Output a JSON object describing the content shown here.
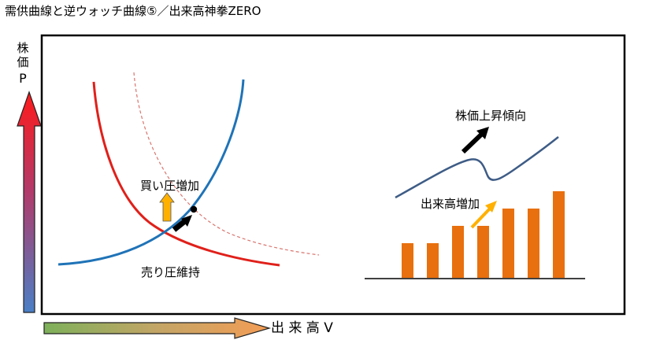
{
  "title": "需供曲線と逆ウォッチ曲線⑤／出来高神拳ZERO",
  "y_axis": {
    "label_line1": "株",
    "label_line2": "価",
    "label_line3": "P"
  },
  "x_axis": {
    "label": "出 来 高 V"
  },
  "left_panel": {
    "buying_pressure_label": "買い圧増加",
    "selling_pressure_label": "売り圧維持"
  },
  "right_panel": {
    "price_trend_label": "株価上昇傾向",
    "volume_label": "出来高増加",
    "volume_bars": [
      2,
      2,
      3,
      3,
      4,
      4,
      5
    ]
  },
  "colors": {
    "demand_curve": "#e0201a",
    "supply_curve": "#1f73b7",
    "shifted_demand": "#d9756e",
    "price_line": "#3e5c86",
    "bar": "#e8700e",
    "up_arrow_orange": "#ffb000",
    "black_arrow": "#000000"
  }
}
